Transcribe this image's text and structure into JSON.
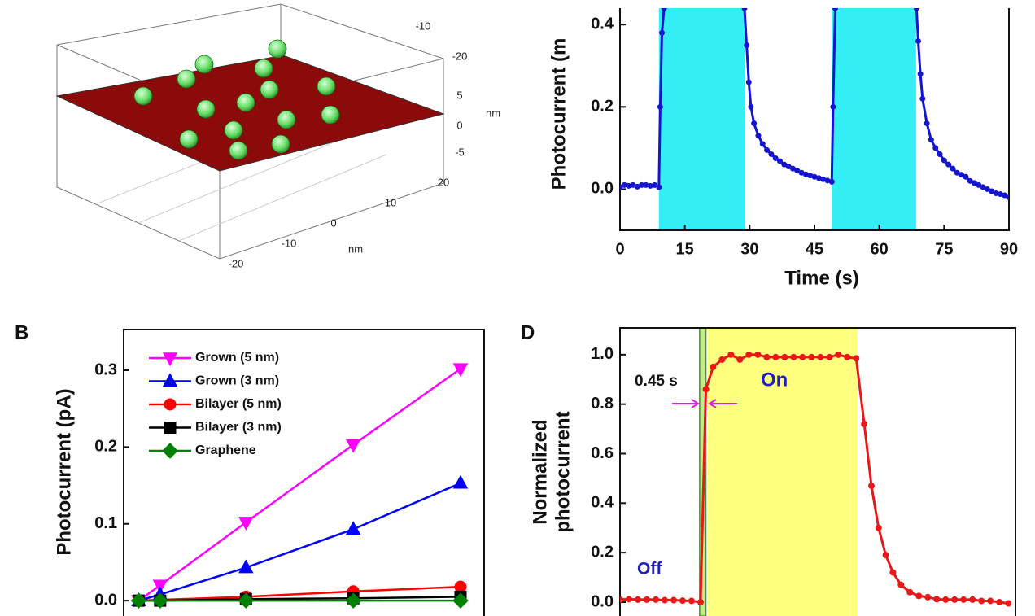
{
  "chart_data": [
    {
      "type": "scatter3d",
      "xticks": [
        -20,
        -10,
        0,
        10,
        20
      ],
      "xlabel": "nm",
      "yticks": [
        -10,
        -20
      ],
      "zticks": [
        5,
        0,
        -5
      ],
      "zlabel": "nm"
    },
    {
      "type": "line",
      "ylabel": "Photocurrent (m",
      "xlabel": "Time (s)",
      "xlim": [
        0,
        90
      ],
      "xticks": [
        0,
        15,
        30,
        45,
        60,
        75,
        90
      ],
      "ylim": [
        -0.1,
        0.44
      ],
      "yticks": [
        {
          "value": 0,
          "label": "0.0"
        },
        {
          "value": 0.2,
          "label": "0.2"
        },
        {
          "value": 0.4,
          "label": "0.4"
        }
      ],
      "spans": [
        [
          9,
          29
        ],
        [
          49,
          68.5
        ]
      ],
      "span_color": "#33eef4",
      "x": [
        0,
        1,
        2,
        3,
        4,
        5,
        6,
        7,
        8,
        9,
        9.3,
        9.7,
        10.2,
        20,
        28.8,
        29.3,
        29.8,
        30.3,
        31,
        32,
        33,
        34,
        35,
        36,
        37,
        38,
        39,
        40,
        41,
        42,
        43,
        44,
        45,
        46,
        47,
        48,
        49,
        49.3,
        49.8,
        59,
        68.6,
        69,
        69.5,
        70,
        71,
        72,
        73,
        74,
        75,
        76,
        77,
        78,
        79,
        80,
        81,
        82,
        83,
        84,
        85,
        86,
        87,
        88,
        89,
        90
      ],
      "series": [
        {
          "color": "#1414d2",
          "marker": "circle",
          "values": [
            0.005,
            0.01,
            0.008,
            0.01,
            0.006,
            0.01,
            0.01,
            0.008,
            0.01,
            0.005,
            0.2,
            0.38,
            0.44,
            null,
            0.44,
            0.35,
            0.26,
            0.2,
            0.16,
            0.13,
            0.11,
            0.095,
            0.085,
            0.075,
            0.068,
            0.06,
            0.055,
            0.05,
            0.045,
            0.04,
            0.036,
            0.033,
            0.03,
            0.027,
            0.024,
            0.021,
            0.018,
            0.2,
            0.44,
            null,
            0.44,
            0.36,
            0.28,
            0.22,
            0.16,
            0.12,
            0.1,
            0.085,
            0.07,
            0.06,
            0.05,
            0.04,
            0.035,
            0.03,
            0.02,
            0.015,
            0.01,
            0.005,
            0.0,
            -0.005,
            -0.01,
            -0.012,
            -0.015,
            -0.02
          ]
        }
      ]
    },
    {
      "type": "line",
      "panel": "B",
      "ylabel": "Photocurrent (pA)",
      "xlim": [
        -0.7,
        16.1
      ],
      "ylim": [
        -0.02,
        0.353
      ],
      "yticks": [
        {
          "value": 0,
          "label": "0.0"
        },
        0.1,
        0.2,
        0.3
      ],
      "x": [
        0,
        1,
        5,
        10,
        15
      ],
      "series": [
        {
          "name": "Grown (5 nm)",
          "color": "#ff00ff",
          "marker": "triangle-down",
          "values": [
            0,
            0.02,
            0.102,
            0.203,
            0.302
          ]
        },
        {
          "name": "Grown (3 nm)",
          "color": "#0000ff",
          "marker": "triangle-up",
          "values": [
            0,
            0.008,
            0.043,
            0.093,
            0.153
          ]
        },
        {
          "name": "Bilayer (5 nm)",
          "color": "#ff0000",
          "marker": "circle",
          "values": [
            0,
            0.001,
            0.005,
            0.012,
            0.018
          ]
        },
        {
          "name": "Bilayer (3 nm)",
          "color": "#000000",
          "marker": "square",
          "values": [
            0,
            0,
            0.002,
            0.003,
            0.005
          ]
        },
        {
          "name": "Graphene",
          "color": "#008000",
          "marker": "diamond",
          "values": [
            0,
            0,
            0,
            0,
            0
          ]
        }
      ]
    },
    {
      "type": "line",
      "panel": "D",
      "ylabel": [
        "Normalized",
        "photocurrent"
      ],
      "xlim": [
        0,
        44.2
      ],
      "ylim": [
        -0.056,
        1.108
      ],
      "yticks": [
        {
          "value": 0,
          "label": "0.0"
        },
        {
          "value": 0.2,
          "label": "0.2"
        },
        {
          "value": 0.4,
          "label": "0.4"
        },
        {
          "value": 0.6,
          "label": "0.6"
        },
        {
          "value": 0.8,
          "label": "0.8"
        },
        {
          "value": 1,
          "label": "1.0"
        }
      ],
      "spans": [
        [
          9.8,
          26.5
        ],
        [
          8.9,
          9.6
        ]
      ],
      "span_colors": [
        "#ffff80",
        "#c8e890"
      ],
      "annotations": [
        "0.45 s",
        "On",
        "Off"
      ],
      "x": [
        0,
        1,
        2,
        3,
        4,
        5,
        6,
        7,
        8,
        9,
        9.6,
        10.4,
        11.4,
        12.4,
        13.4,
        14.4,
        15.4,
        16.4,
        17.4,
        18.4,
        19.4,
        20.4,
        21.4,
        22.4,
        23.4,
        24.4,
        25.4,
        26.4,
        27.3,
        28.1,
        28.9,
        29.7,
        30.5,
        31.4,
        32.4,
        33.4,
        34.4,
        35.4,
        36.4,
        37.4,
        38.4,
        39.4,
        40.4,
        41.4,
        42.4,
        43.4
      ],
      "series": [
        {
          "color": "#e81818",
          "marker": "circle",
          "values": [
            0.01,
            0.012,
            0.01,
            0.01,
            0.01,
            0.008,
            0.008,
            0.006,
            0.005,
            0.0,
            0.86,
            0.95,
            0.98,
            1.0,
            0.98,
            1.0,
            1.0,
            0.99,
            0.99,
            0.99,
            0.99,
            0.99,
            0.99,
            0.99,
            0.99,
            1.0,
            0.99,
            0.985,
            0.72,
            0.47,
            0.3,
            0.19,
            0.12,
            0.07,
            0.04,
            0.025,
            0.02,
            0.012,
            0.01,
            0.01,
            0.01,
            0.01,
            0.005,
            0.005,
            0.0,
            -0.005
          ]
        }
      ]
    }
  ]
}
